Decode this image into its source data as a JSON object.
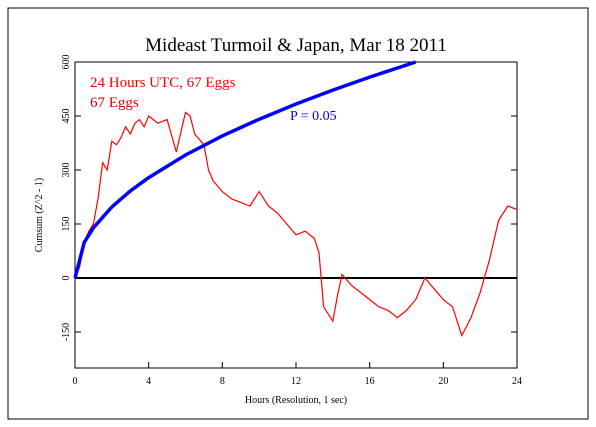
{
  "chart_data": {
    "type": "line",
    "title": "Mideast Turmoil & Japan, Mar 18 2011",
    "subtitle": "67 Eggs",
    "xlabel": "Hours (Resolution, 1 sec)",
    "ylabel": "Cumsum (Z^2 - 1)",
    "xlim": [
      0,
      24
    ],
    "xticks": [
      0,
      4,
      8,
      12,
      16,
      20,
      24
    ],
    "ylim": [
      -250,
      600
    ],
    "yticks": [
      -150,
      0,
      150,
      300,
      450,
      600
    ],
    "series": [
      {
        "name": "24 Hours UTC, 67 Eggs",
        "color": "#ff0000",
        "x": [
          0,
          0.25,
          0.5,
          0.75,
          1,
          1.25,
          1.5,
          1.75,
          2,
          2.25,
          2.5,
          2.75,
          3,
          3.25,
          3.5,
          3.75,
          4,
          4.5,
          5,
          5.5,
          6,
          6.25,
          6.5,
          7,
          7.25,
          7.5,
          8,
          8.5,
          9,
          9.5,
          10,
          10.5,
          11,
          11.5,
          12,
          12.5,
          13,
          13.25,
          13.5,
          14,
          14.25,
          14.5,
          15,
          15.5,
          16,
          16.5,
          17,
          17.5,
          18,
          18.5,
          19,
          19.5,
          20,
          20.5,
          21,
          21.5,
          22,
          22.5,
          23,
          23.5,
          24
        ],
        "values": [
          0,
          30,
          100,
          130,
          150,
          220,
          320,
          300,
          380,
          370,
          390,
          420,
          400,
          430,
          440,
          420,
          450,
          430,
          440,
          350,
          460,
          450,
          400,
          370,
          300,
          270,
          240,
          220,
          210,
          200,
          240,
          200,
          180,
          150,
          120,
          130,
          110,
          70,
          -80,
          -120,
          -50,
          10,
          -20,
          -40,
          -60,
          -80,
          -90,
          -110,
          -90,
          -60,
          0,
          -30,
          -60,
          -80,
          -160,
          -110,
          -40,
          50,
          160,
          200,
          190
        ]
      },
      {
        "name": "P = 0.05",
        "color": "#0000ff",
        "x": [
          0,
          0.5,
          1,
          2,
          3,
          4,
          6,
          8,
          10,
          12,
          14,
          16,
          18.5
        ],
        "values": [
          0,
          98.6,
          139.5,
          197.3,
          241.6,
          279,
          341.7,
          394.6,
          441.1,
          483.2,
          522,
          558,
          600
        ]
      }
    ]
  }
}
